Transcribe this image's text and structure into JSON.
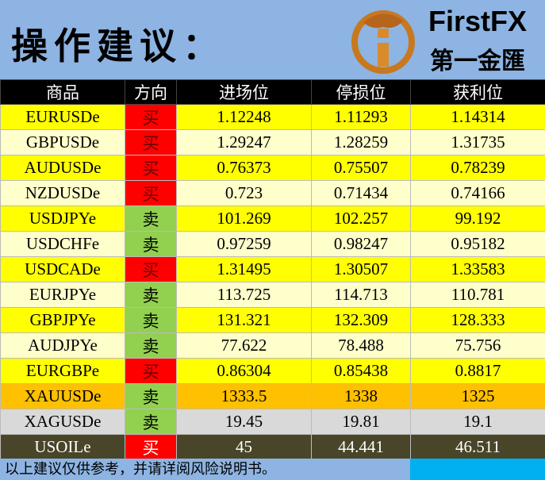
{
  "header": {
    "title": "操作建议：",
    "brand": "FirstFX",
    "brand_cn": "第一金匯"
  },
  "table": {
    "columns": [
      "商品",
      "方向",
      "进场位",
      "停损位",
      "获利位"
    ],
    "rows": [
      [
        "EURUSDe",
        "买",
        1.12248,
        1.11293,
        1.14314
      ],
      [
        "GBPUSDe",
        "买",
        1.29247,
        1.28259,
        1.31735
      ],
      [
        "AUDUSDe",
        "买",
        0.76373,
        0.75507,
        0.78239
      ],
      [
        "NZDUSDe",
        "买",
        0.723,
        0.71434,
        0.74166
      ],
      [
        "USDJPYe",
        "卖",
        101.269,
        102.257,
        99.192
      ],
      [
        "USDCHFe",
        "卖",
        0.97259,
        0.98247,
        0.95182
      ],
      [
        "USDCADe",
        "买",
        1.31495,
        1.30507,
        1.33583
      ],
      [
        "EURJPYe",
        "卖",
        113.725,
        114.713,
        110.781
      ],
      [
        "GBPJPYe",
        "卖",
        131.321,
        132.309,
        128.333
      ],
      [
        "AUDJPYe",
        "卖",
        77.622,
        78.488,
        75.756
      ],
      [
        "EURGBPe",
        "买",
        0.86304,
        0.85438,
        0.8817
      ],
      [
        "XAUUSDe",
        "卖",
        1333.5,
        1338,
        1325
      ],
      [
        "XAGUSDe",
        "卖",
        19.45,
        19.81,
        19.1
      ],
      [
        "USOILe",
        "买",
        45,
        44.441,
        46.511
      ]
    ]
  },
  "footer": {
    "note": "以上建议仅供参考，并请详阅风险说明书。"
  }
}
